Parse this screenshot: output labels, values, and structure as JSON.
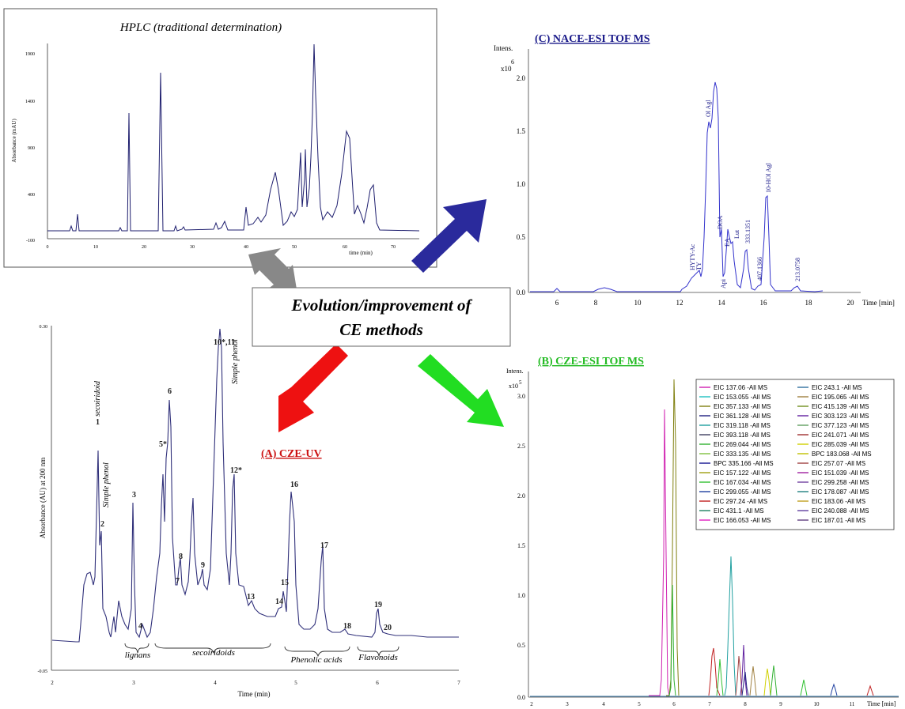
{
  "hplc": {
    "title": "HPLC (traditional determination)",
    "ylabel": "Absorbance (mAU)",
    "xlabel": "time (min)",
    "yticks": [
      "-100",
      "400",
      "900",
      "1400",
      "1900"
    ],
    "xticks": [
      "0",
      "10",
      "20",
      "30",
      "40",
      "50",
      "60",
      "70"
    ]
  },
  "nace": {
    "title": "(C) NACE-ESI TOF MS",
    "intens_label": "Intens.",
    "mult_label": "x10",
    "mult_exp": "6",
    "xlabel": "Time [min]",
    "yticks": [
      "0.0",
      "0.5",
      "1.0",
      "1.5",
      "2.0"
    ],
    "xticks": [
      "6",
      "8",
      "10",
      "12",
      "14",
      "16",
      "18",
      "20"
    ],
    "peaks": [
      "HYTY-Ac",
      "TY",
      "Api",
      "Ol Agl",
      "DOA",
      "EA",
      "Lut",
      "333.1351",
      "407.1366",
      "10-HOl Agl",
      "213.0758"
    ]
  },
  "center": {
    "line1": "Evolution/improvement of",
    "line2": "CE methods"
  },
  "cze_uv": {
    "title": "(A) CZE-UV",
    "ylabel": "Absorbance (AU) at 200 nm",
    "xlabel": "Time (min)",
    "yticks": [
      "-0.05",
      "0.30"
    ],
    "xticks": [
      "2",
      "3",
      "4",
      "5",
      "6",
      "7"
    ],
    "peaks": [
      "1",
      "2",
      "3",
      "4",
      "5*",
      "6",
      "7",
      "8",
      "9",
      "10*,11",
      "12*",
      "13",
      "14",
      "15",
      "16",
      "17",
      "18",
      "19",
      "20"
    ],
    "annotations": [
      "secoiridoid",
      "Simple phenol",
      "Simple phenol"
    ],
    "groups": [
      "lignans",
      "secoiridoids",
      "Phenolic acids",
      "Flavonoids"
    ]
  },
  "cze_esi": {
    "title": "(B) CZE-ESI TOF MS",
    "intens_label": "Intens.",
    "mult_label": "x10",
    "mult_exp": "5",
    "xlabel": "Time [min]",
    "yticks": [
      "0.0",
      "0.5",
      "1.0",
      "1.5",
      "2.0",
      "2.5",
      "3.0"
    ],
    "xticks": [
      "2",
      "3",
      "4",
      "5",
      "6",
      "7",
      "8",
      "9",
      "10",
      "11"
    ],
    "legend": [
      "EIC 137.06 -All MS",
      "EIC 243.1 -All MS",
      "EIC 153.055 -All MS",
      "EIC 195.065 -All MS",
      "EIC 357.133 -All MS",
      "EIC 415.139 -All MS",
      "EIC 361.128 -All MS",
      "EIC 303.123 -All MS",
      "EIC 319.118 -All MS",
      "EIC 377.123 -All MS",
      "EIC 393.118 -All MS",
      "EIC 241.071 -All MS",
      "EIC 269.044 -All MS",
      "EIC 285.039 -All MS",
      "EIC 333.135 -All MS",
      "BPC 183.068 -All MS",
      "BPC 335.166 -All MS",
      "EIC 257.07 -All MS",
      "EIC 157.122 -All MS",
      "EIC 151.039 -All MS",
      "EIC 167.034 -All MS",
      "EIC 299.258 -All MS",
      "EIC 299.055 -All MS",
      "EIC 178.087 -All MS",
      "EIC 297.24 -All MS",
      "EIC 183.06 -All MS",
      "EIC 431.1 -All MS",
      "EIC 240.088 -All MS",
      "EIC 166.053 -All MS",
      "EIC 187.01 -All MS"
    ],
    "legend_colors": [
      "#d020b0",
      "#3070a0",
      "#20c0c0",
      "#a08040",
      "#808010",
      "#709020",
      "#202080",
      "#6020a0",
      "#20a0a0",
      "#60a060",
      "#404060",
      "#a03030",
      "#30b030",
      "#d0d000",
      "#80c040",
      "#c0c000",
      "#101090",
      "#a04040",
      "#a0a010",
      "#a020a0",
      "#30c030",
      "#7040a0",
      "#2040a0",
      "#208080",
      "#c02020",
      "#c0a020",
      "#208060",
      "#6040a0",
      "#e020c0",
      "#604080"
    ]
  },
  "colors": {
    "arrow_blue": "#2a2a9c",
    "arrow_grey": "#888888",
    "arrow_red": "#ee1111",
    "arrow_green": "#22dd22",
    "title_red": "#cc1111",
    "title_green": "#22bb22",
    "title_blue": "#1a1a8a",
    "trace_blue": "#303080"
  },
  "chart_data": [
    {
      "type": "line",
      "title": "HPLC (traditional determination)",
      "xlabel": "time (min)",
      "ylabel": "Absorbance (mAU)",
      "xlim": [
        0,
        75
      ],
      "ylim": [
        -100,
        2000
      ],
      "series": [
        {
          "x": [
            0,
            5,
            6,
            17,
            23,
            40,
            44,
            47,
            50,
            52,
            53,
            54,
            57,
            61,
            66,
            70,
            75
          ],
          "y": [
            0,
            0,
            60,
            1400,
            1750,
            250,
            600,
            250,
            900,
            900,
            1100,
            2100,
            400,
            1150,
            500,
            0,
            0
          ]
        }
      ]
    },
    {
      "type": "line",
      "title": "(C) NACE-ESI TOF MS",
      "xlabel": "Time [min]",
      "ylim": [
        0,
        2.1
      ],
      "xlim": [
        4.8,
        21.5
      ],
      "series": [
        {
          "x": [
            5,
            8,
            12,
            12.8,
            13.2,
            13.5,
            13.8,
            14.4,
            15.1,
            16,
            17.4,
            18.5
          ],
          "y": [
            0,
            0.04,
            0,
            0.18,
            1.6,
            1.95,
            0.55,
            0.5,
            0.42,
            0.9,
            0.08,
            0
          ]
        }
      ]
    },
    {
      "type": "line",
      "title": "(A) CZE-UV",
      "xlabel": "Time (min)",
      "ylabel": "Absorbance (AU) at 200 nm",
      "xlim": [
        2,
        7
      ],
      "ylim": [
        -0.05,
        0.3
      ],
      "series": [
        {
          "x": [
            2,
            2.4,
            2.55,
            2.6,
            3.0,
            3.1,
            3.38,
            3.45,
            3.57,
            3.75,
            3.85,
            4.05,
            4.22,
            4.42,
            4.82,
            4.95,
            5.33,
            5.62,
            6.0,
            6.12,
            7.0
          ],
          "y": [
            0,
            0.02,
            0.2,
            0.11,
            0.15,
            0.0,
            0.18,
            0.22,
            0.08,
            0.14,
            0.08,
            0.29,
            0.15,
            0.04,
            0.04,
            0.14,
            0.09,
            0.0,
            0.02,
            0.0,
            0.0
          ]
        }
      ]
    },
    {
      "type": "line",
      "title": "(B) CZE-ESI TOF MS",
      "xlabel": "Time [min]",
      "xlim": [
        1.9,
        12.1
      ],
      "ylim": [
        0,
        3.3
      ],
      "series": [
        {
          "name": "EIC 137.06 -All MS",
          "x": [
            5.76
          ],
          "y": [
            2.85
          ]
        },
        {
          "name": "EIC 357.133 -All MS",
          "x": [
            6.0
          ],
          "y": [
            3.2
          ]
        },
        {
          "name": "EIC 319.118 -All MS",
          "x": [
            7.62
          ],
          "y": [
            1.38
          ]
        },
        {
          "name": "EIC 297.24 -All MS",
          "x": [
            7.2
          ],
          "y": [
            0.7
          ]
        }
      ]
    }
  ]
}
